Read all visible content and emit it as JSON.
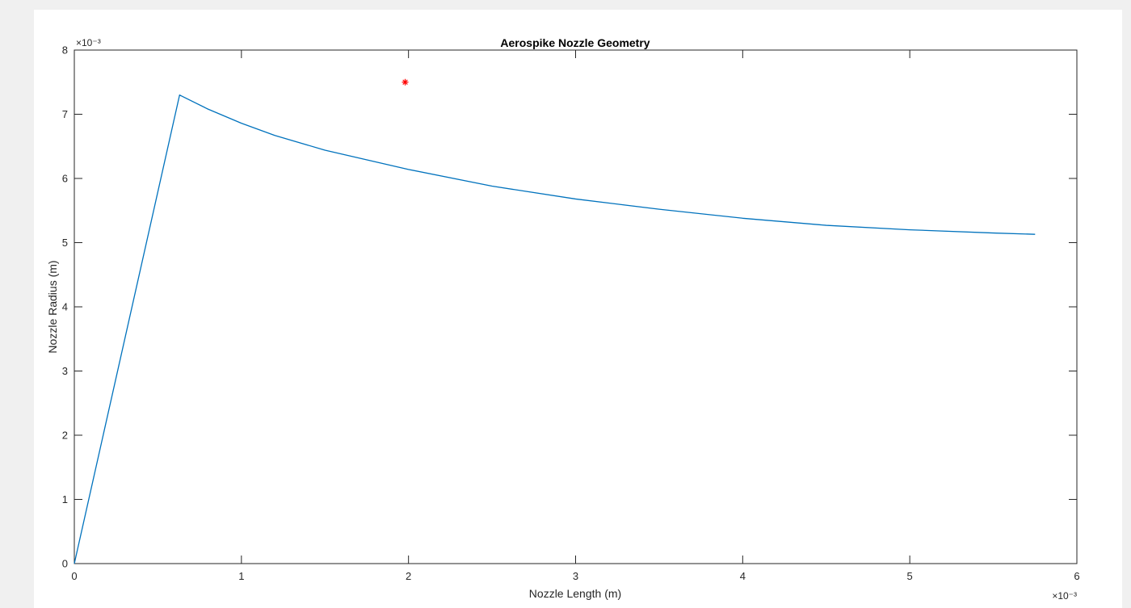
{
  "chart_data": {
    "type": "line",
    "title": "Aerospike Nozzle Geometry",
    "xlabel": "Nozzle Length (m)",
    "ylabel": "Nozzle Radius (m)",
    "x_exponent_label": "×10⁻³",
    "y_exponent_label": "×10⁻³",
    "xlim": [
      0,
      6
    ],
    "ylim": [
      0,
      8
    ],
    "xticks": [
      "0",
      "1",
      "2",
      "3",
      "4",
      "5",
      "6"
    ],
    "yticks": [
      "0",
      "1",
      "2",
      "3",
      "4",
      "5",
      "6",
      "7",
      "8"
    ],
    "grid": false,
    "series": [
      {
        "color": "#0072bd",
        "x": [
          0,
          0.63,
          0.8,
          1.0,
          1.2,
          1.5,
          2.0,
          2.5,
          3.0,
          3.5,
          4.0,
          4.5,
          5.0,
          5.5,
          5.75
        ],
        "y": [
          0,
          7.3,
          7.08,
          6.86,
          6.67,
          6.44,
          6.14,
          5.88,
          5.68,
          5.52,
          5.38,
          5.27,
          5.2,
          5.15,
          5.13
        ]
      }
    ],
    "markers": [
      {
        "marker": "asterisk",
        "color": "#ff0000",
        "x": 1.98,
        "y": 7.5
      }
    ]
  }
}
